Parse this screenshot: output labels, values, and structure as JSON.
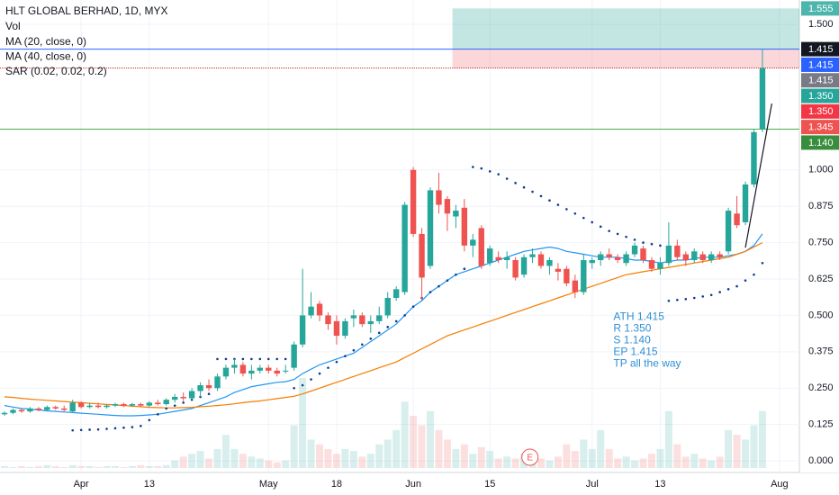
{
  "chart_data": {
    "type": "candlestick",
    "title": "HLT GLOBAL BERHAD, 1D, MYX",
    "xlim": [
      -0.53,
      93.34
    ],
    "ylim": [
      -0.04,
      1.584
    ],
    "grid": true,
    "xticks": [
      {
        "value": 9,
        "label": "Apr"
      },
      {
        "value": 17,
        "label": "13"
      },
      {
        "value": 31,
        "label": "May"
      },
      {
        "value": 39,
        "label": "18"
      },
      {
        "value": 48,
        "label": "Jun"
      },
      {
        "value": 57,
        "label": "15"
      },
      {
        "value": 69,
        "label": "Jul"
      },
      {
        "value": 77,
        "label": "13"
      },
      {
        "value": 91,
        "label": "Aug"
      }
    ],
    "yticks": [
      {
        "value": 1.5,
        "label": "1.500"
      },
      {
        "value": 1,
        "label": "1.000"
      },
      0.875,
      {
        "value": 0.75,
        "label": "0.750"
      },
      0.625,
      {
        "value": 0.5,
        "label": "0.500"
      },
      0.375,
      {
        "value": 0.25,
        "label": "0.250"
      },
      0.125,
      {
        "value": 0,
        "label": "0.000"
      }
    ],
    "up_color": "#26a69a",
    "down_color": "#ef5350",
    "open": [
      0.16,
      0.165,
      0.175,
      0.17,
      0.18,
      0.175,
      0.185,
      0.18,
      0.17,
      0.2,
      0.185,
      0.19,
      0.185,
      0.19,
      0.195,
      0.19,
      0.195,
      0.19,
      0.2,
      0.195,
      0.21,
      0.22,
      0.215,
      0.24,
      0.26,
      0.25,
      0.29,
      0.32,
      0.33,
      0.3,
      0.31,
      0.32,
      0.31,
      0.31,
      0.32,
      0.4,
      0.5,
      0.54,
      0.5,
      0.48,
      0.43,
      0.49,
      0.5,
      0.47,
      0.48,
      0.5,
      0.56,
      0.58,
      1.0,
      0.78,
      0.67,
      0.93,
      0.9,
      0.84,
      0.87,
      0.74,
      0.8,
      0.68,
      0.7,
      0.69,
      0.69,
      0.64,
      0.7,
      0.71,
      0.67,
      0.66,
      0.66,
      0.62,
      0.58,
      0.68,
      0.69,
      0.71,
      0.7,
      0.68,
      0.71,
      0.73,
      0.69,
      0.66,
      0.68,
      0.74,
      0.71,
      0.69,
      0.71,
      0.69,
      0.71,
      0.72,
      0.85,
      0.82,
      0.95,
      1.14
    ],
    "high": [
      0.17,
      0.18,
      0.18,
      0.185,
      0.185,
      0.19,
      0.19,
      0.19,
      0.21,
      0.205,
      0.2,
      0.2,
      0.195,
      0.2,
      0.2,
      0.2,
      0.2,
      0.205,
      0.21,
      0.215,
      0.23,
      0.235,
      0.25,
      0.27,
      0.28,
      0.3,
      0.33,
      0.35,
      0.34,
      0.33,
      0.33,
      0.33,
      0.32,
      0.33,
      0.41,
      0.66,
      0.58,
      0.55,
      0.51,
      0.5,
      0.49,
      0.52,
      0.51,
      0.5,
      0.53,
      0.58,
      0.6,
      0.89,
      1.01,
      0.8,
      0.94,
      0.99,
      0.91,
      0.88,
      0.9,
      0.78,
      0.81,
      0.74,
      0.72,
      0.72,
      0.7,
      0.71,
      0.73,
      0.72,
      0.7,
      0.68,
      0.67,
      0.64,
      0.71,
      0.7,
      0.72,
      0.73,
      0.71,
      0.72,
      0.75,
      0.74,
      0.7,
      0.7,
      0.82,
      0.76,
      0.72,
      0.73,
      0.72,
      0.72,
      0.72,
      0.87,
      0.91,
      0.96,
      1.14,
      1.415
    ],
    "low": [
      0.155,
      0.16,
      0.165,
      0.165,
      0.17,
      0.17,
      0.175,
      0.17,
      0.165,
      0.18,
      0.18,
      0.18,
      0.18,
      0.185,
      0.185,
      0.185,
      0.185,
      0.185,
      0.19,
      0.19,
      0.2,
      0.205,
      0.21,
      0.22,
      0.24,
      0.24,
      0.28,
      0.3,
      0.29,
      0.28,
      0.3,
      0.3,
      0.29,
      0.3,
      0.31,
      0.39,
      0.49,
      0.48,
      0.45,
      0.4,
      0.42,
      0.46,
      0.46,
      0.44,
      0.47,
      0.49,
      0.55,
      0.57,
      0.77,
      0.55,
      0.66,
      0.85,
      0.79,
      0.8,
      0.72,
      0.7,
      0.66,
      0.67,
      0.68,
      0.66,
      0.62,
      0.63,
      0.68,
      0.66,
      0.64,
      0.62,
      0.6,
      0.56,
      0.57,
      0.66,
      0.67,
      0.69,
      0.68,
      0.67,
      0.7,
      0.68,
      0.65,
      0.64,
      0.67,
      0.69,
      0.67,
      0.68,
      0.68,
      0.68,
      0.69,
      0.71,
      0.8,
      0.81,
      0.94,
      1.13
    ],
    "close": [
      0.165,
      0.175,
      0.17,
      0.18,
      0.175,
      0.185,
      0.18,
      0.175,
      0.2,
      0.185,
      0.19,
      0.185,
      0.19,
      0.195,
      0.19,
      0.195,
      0.19,
      0.2,
      0.195,
      0.21,
      0.22,
      0.215,
      0.24,
      0.26,
      0.25,
      0.29,
      0.32,
      0.33,
      0.3,
      0.31,
      0.32,
      0.31,
      0.3,
      0.31,
      0.4,
      0.5,
      0.53,
      0.5,
      0.47,
      0.43,
      0.48,
      0.5,
      0.47,
      0.48,
      0.5,
      0.56,
      0.59,
      0.88,
      0.78,
      0.63,
      0.93,
      0.88,
      0.85,
      0.86,
      0.74,
      0.76,
      0.67,
      0.73,
      0.69,
      0.7,
      0.63,
      0.7,
      0.71,
      0.67,
      0.69,
      0.65,
      0.61,
      0.58,
      0.69,
      0.69,
      0.71,
      0.7,
      0.69,
      0.71,
      0.74,
      0.69,
      0.66,
      0.68,
      0.74,
      0.7,
      0.69,
      0.72,
      0.69,
      0.71,
      0.7,
      0.86,
      0.81,
      0.95,
      1.13,
      1.35
    ],
    "volume": {
      "name": "Vol",
      "values": [
        2,
        1,
        2,
        1,
        2,
        3,
        2,
        1,
        3,
        2,
        2,
        1,
        2,
        2,
        1,
        2,
        3,
        2,
        2,
        3,
        8,
        12,
        15,
        18,
        10,
        20,
        35,
        20,
        15,
        12,
        10,
        8,
        6,
        8,
        45,
        95,
        30,
        25,
        20,
        15,
        20,
        18,
        12,
        15,
        25,
        30,
        40,
        70,
        55,
        45,
        60,
        40,
        30,
        20,
        25,
        15,
        22,
        18,
        10,
        12,
        10,
        15,
        12,
        10,
        8,
        12,
        25,
        18,
        30,
        20,
        40,
        20,
        10,
        12,
        8,
        10,
        15,
        20,
        60,
        25,
        12,
        15,
        10,
        8,
        12,
        40,
        35,
        30,
        45,
        60
      ]
    },
    "series": [
      {
        "name": "MA (20, close, 0)",
        "color": "#2196f3",
        "style": "line",
        "values": [
          0.19,
          0.185,
          0.18,
          0.178,
          0.175,
          0.172,
          0.17,
          0.168,
          0.166,
          0.164,
          0.162,
          0.16,
          0.158,
          0.156,
          0.155,
          0.155,
          0.156,
          0.158,
          0.16,
          0.165,
          0.17,
          0.175,
          0.18,
          0.19,
          0.2,
          0.21,
          0.22,
          0.235,
          0.245,
          0.255,
          0.26,
          0.265,
          0.27,
          0.272,
          0.28,
          0.3,
          0.315,
          0.33,
          0.34,
          0.35,
          0.36,
          0.37,
          0.39,
          0.41,
          0.43,
          0.45,
          0.47,
          0.5,
          0.53,
          0.55,
          0.58,
          0.6,
          0.62,
          0.64,
          0.65,
          0.66,
          0.67,
          0.68,
          0.69,
          0.7,
          0.71,
          0.72,
          0.725,
          0.73,
          0.735,
          0.73,
          0.72,
          0.715,
          0.71,
          0.705,
          0.7,
          0.7,
          0.7,
          0.695,
          0.69,
          0.69,
          0.685,
          0.68,
          0.685,
          0.69,
          0.69,
          0.695,
          0.7,
          0.7,
          0.7,
          0.705,
          0.71,
          0.72,
          0.74,
          0.78
        ]
      },
      {
        "name": "MA (40, close, 0)",
        "color": "#f57c00",
        "style": "line",
        "values": [
          0.22,
          0.218,
          0.215,
          0.212,
          0.21,
          0.208,
          0.206,
          0.204,
          0.202,
          0.2,
          0.198,
          0.196,
          0.194,
          0.192,
          0.19,
          0.188,
          0.186,
          0.184,
          0.183,
          0.182,
          0.182,
          0.183,
          0.184,
          0.186,
          0.188,
          0.19,
          0.193,
          0.196,
          0.2,
          0.203,
          0.206,
          0.21,
          0.214,
          0.218,
          0.222,
          0.23,
          0.24,
          0.25,
          0.26,
          0.27,
          0.28,
          0.29,
          0.3,
          0.31,
          0.32,
          0.33,
          0.34,
          0.355,
          0.37,
          0.385,
          0.4,
          0.415,
          0.43,
          0.44,
          0.45,
          0.46,
          0.47,
          0.48,
          0.49,
          0.5,
          0.51,
          0.52,
          0.53,
          0.54,
          0.55,
          0.56,
          0.57,
          0.58,
          0.59,
          0.6,
          0.61,
          0.62,
          0.63,
          0.64,
          0.645,
          0.65,
          0.655,
          0.66,
          0.665,
          0.67,
          0.675,
          0.68,
          0.685,
          0.69,
          0.695,
          0.7,
          0.71,
          0.72,
          0.735,
          0.75
        ]
      },
      {
        "name": "SAR (0.02, 0.02, 0.2)",
        "color": "#0d3c8c",
        "style": "dots",
        "values": [
          null,
          null,
          null,
          null,
          null,
          null,
          null,
          null,
          0.105,
          0.106,
          0.107,
          0.108,
          0.11,
          0.112,
          0.114,
          0.116,
          0.12,
          0.14,
          0.16,
          0.18,
          0.19,
          0.2,
          0.21,
          0.22,
          0.23,
          0.35,
          0.35,
          0.35,
          0.35,
          0.35,
          0.35,
          0.35,
          0.35,
          0.35,
          0.25,
          0.26,
          0.28,
          0.3,
          0.32,
          0.34,
          0.36,
          0.38,
          0.4,
          0.42,
          0.44,
          0.46,
          0.48,
          0.5,
          0.53,
          0.56,
          0.58,
          0.6,
          0.62,
          0.64,
          0.66,
          1.01,
          1.005,
          0.995,
          0.985,
          0.97,
          0.955,
          0.94,
          0.925,
          0.91,
          0.895,
          0.88,
          0.865,
          0.85,
          0.835,
          0.82,
          0.805,
          0.79,
          0.78,
          0.77,
          0.76,
          0.75,
          0.745,
          0.74,
          0.55,
          0.553,
          0.556,
          0.56,
          0.565,
          0.57,
          0.58,
          0.59,
          0.6,
          0.62,
          0.64,
          0.68
        ]
      }
    ],
    "levels": [
      {
        "value": 1.415,
        "color": "#2962ff",
        "dash": false
      },
      {
        "value": 1.35,
        "color": "#c62828",
        "dash": true
      },
      {
        "value": 1.14,
        "color": "#4caf50",
        "dash": false
      }
    ],
    "position": {
      "from": 52.6,
      "target": 1.555,
      "entry": 1.415,
      "stop": 1.35,
      "profit_color": "rgba(38,166,154,0.28)",
      "loss_color": "rgba(242,54,69,0.2)"
    },
    "trend_line": {
      "x": [
        87.0,
        90.1
      ],
      "y": [
        0.733,
        1.228
      ],
      "color": "#131722"
    },
    "price_labels": [
      {
        "value": 1.555,
        "color": "#4db6ac"
      },
      {
        "value": 1.415,
        "color": "#131722"
      },
      {
        "value": 1.415,
        "color": "#2962ff"
      },
      {
        "value": 1.415,
        "color": "#787b86"
      },
      {
        "value": {
          "value": 1.35,
          "label": "1.350"
        },
        "color": "#26a69a"
      },
      {
        "value": {
          "value": 1.35,
          "label": "1.350"
        },
        "color": "#f23645"
      },
      {
        "value": 1.345,
        "color": "#ef5350"
      },
      {
        "value": {
          "value": 1.14,
          "label": "1.140"
        },
        "color": "#388e3c"
      }
    ],
    "annotation": {
      "x": 71.5,
      "y": 0.5,
      "color": "#2f8fd3",
      "lines": [
        "ATH 1.415",
        "R 1.350",
        "S 1.140",
        "EP 1.415",
        "TP all the way"
      ]
    },
    "events": [
      {
        "x": 61.7,
        "label": "E"
      }
    ]
  }
}
